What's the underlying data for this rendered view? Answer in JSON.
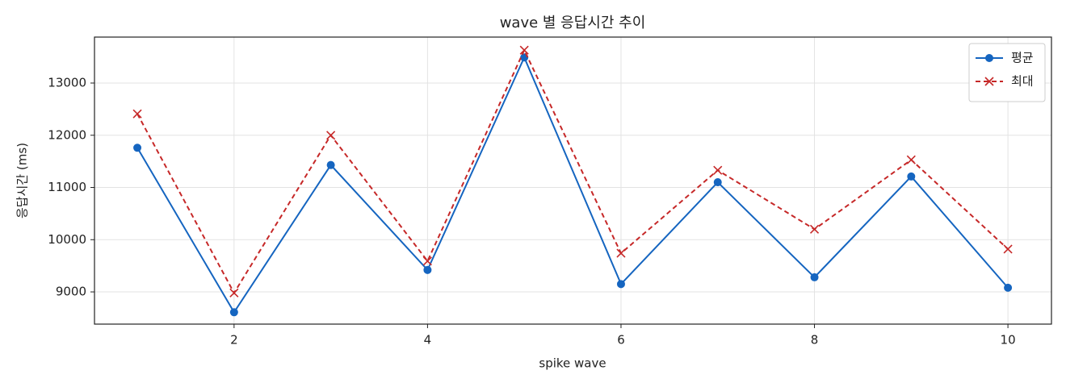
{
  "chart_data": {
    "type": "line",
    "title": "wave 별 응답시간 추이",
    "xlabel": "spike wave",
    "ylabel": "응답시간 (ms)",
    "x": [
      1,
      2,
      3,
      4,
      5,
      6,
      7,
      8,
      9,
      10
    ],
    "series": [
      {
        "name": "평균",
        "color": "#1565c0",
        "marker": "o",
        "linestyle": "solid",
        "values": [
          11760,
          8610,
          11430,
          9420,
          13490,
          9150,
          11100,
          9280,
          11210,
          9080
        ]
      },
      {
        "name": "최대",
        "color": "#c62828",
        "marker": "x",
        "linestyle": "dashed",
        "values": [
          12410,
          8980,
          12000,
          9590,
          13630,
          9740,
          11330,
          10200,
          11530,
          9820
        ]
      }
    ],
    "xlim": [
      0.557,
      10.45
    ],
    "ylim": [
      8383,
      13880
    ],
    "xticks": [
      2,
      4,
      6,
      8,
      10
    ],
    "yticks": [
      9000,
      10000,
      11000,
      12000,
      13000
    ],
    "grid": true,
    "legend": "upper right"
  }
}
